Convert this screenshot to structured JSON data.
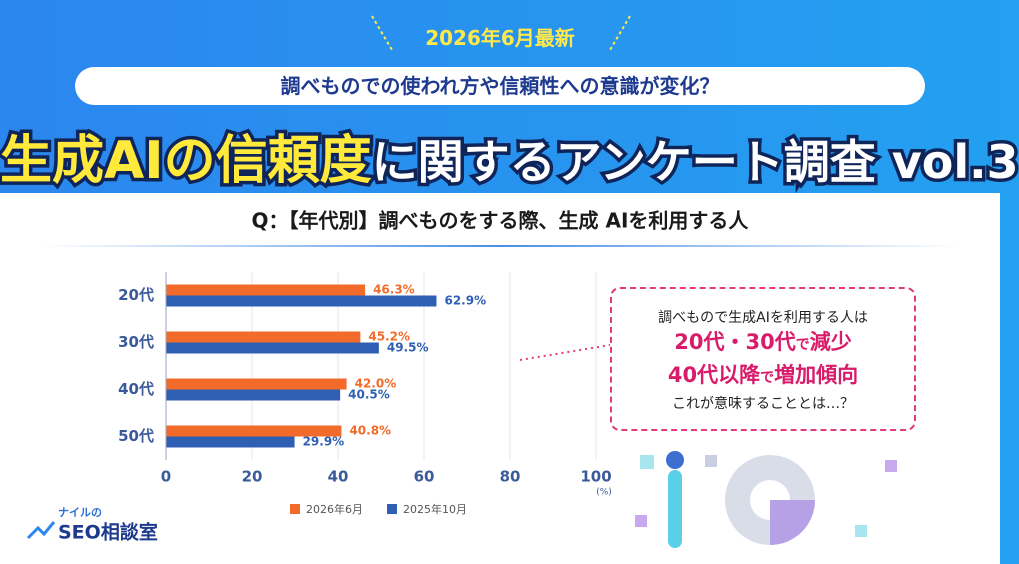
{
  "header": {
    "date": "2026年6月最新",
    "subtitle": "調べものでの使われ方や信頼性への意識が変化？",
    "title_highlight": "生成AIの信頼度",
    "title_rest": "に関するアンケート調査 vol.3"
  },
  "chart_data": {
    "type": "bar",
    "orientation": "horizontal",
    "title": "Q：【年代別】調べものをする際、生成 AIを利用する人",
    "categories": [
      "20代",
      "30代",
      "40代",
      "50代"
    ],
    "series": [
      {
        "name": "2026年6月",
        "color": "#f26b2a",
        "values": [
          46.3,
          45.2,
          42.0,
          40.8
        ],
        "value_labels": [
          "46.3%",
          "45.2%",
          "42.0%",
          "40.8%"
        ]
      },
      {
        "name": "2025年10月",
        "color": "#2f5fb3",
        "values": [
          62.9,
          49.5,
          40.5,
          29.9
        ],
        "value_labels": [
          "62.9%",
          "49.5%",
          "40.5%",
          "29.9%"
        ]
      }
    ],
    "xlim": [
      0,
      100
    ],
    "xticks": [
      0,
      20,
      40,
      60,
      80,
      100
    ],
    "x_unit": "(%)",
    "grid": true,
    "legend": "bottom"
  },
  "callout": {
    "line1": "調べもので生成AIを利用する人は",
    "line2a": "20代・30代",
    "line2b": "で",
    "line2c": "減少",
    "line3a": "40代以降",
    "line3b": "で",
    "line3c": "増加傾向",
    "line4": "これが意味することとは…？"
  },
  "logo": {
    "small": "ナイルの",
    "main": "SEO相談室"
  }
}
